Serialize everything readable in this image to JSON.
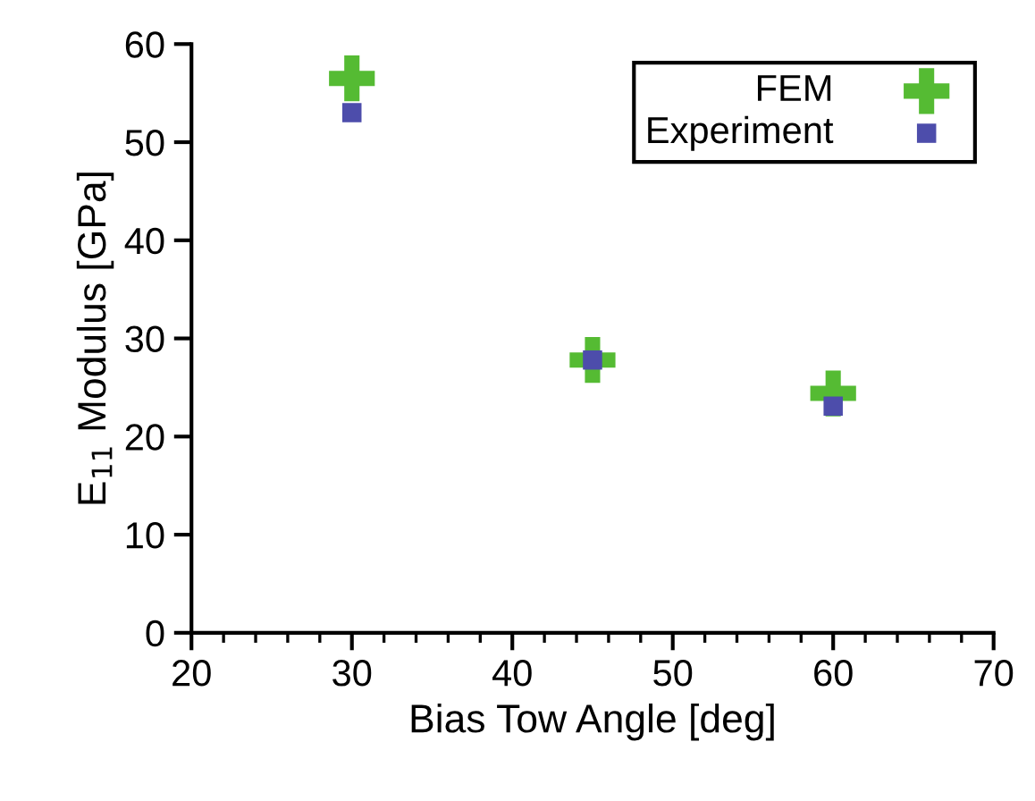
{
  "chart_data": {
    "type": "scatter",
    "xlabel": "Bias Tow Angle [deg]",
    "ylabel": "E$_{11}$ Modulus [GPa]",
    "x": [
      30,
      45,
      60
    ],
    "series": [
      {
        "name": "FEM",
        "color": "#55bb33",
        "marker": "cross",
        "values": [
          56.5,
          27.8,
          24.4
        ]
      },
      {
        "name": "Experiment",
        "color": "#4d4dab",
        "marker": "square",
        "values": [
          53.0,
          27.8,
          23.1
        ]
      }
    ],
    "xlim": [
      20,
      70
    ],
    "xticks": [
      20,
      30,
      40,
      50,
      60,
      70
    ],
    "ylim": [
      0,
      60
    ],
    "yticks": [
      0,
      10,
      20,
      30,
      40,
      50,
      60
    ],
    "grid": false,
    "legend": "top right"
  }
}
